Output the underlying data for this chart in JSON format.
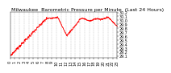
{
  "title": "Milwaukee  Barometric Pressure per Minute  (Last 24 Hours)",
  "line_color": "#ff0000",
  "bg_color": "#ffffff",
  "grid_color": "#b0b0b0",
  "ylim": [
    29.05,
    30.22
  ],
  "yticks": [
    29.1,
    29.2,
    29.3,
    29.4,
    29.5,
    29.6,
    29.7,
    29.8,
    29.9,
    30.0,
    30.1,
    30.2
  ],
  "ytick_labels": [
    "29.1",
    "29.2",
    "29.3",
    "29.4",
    "29.5",
    "29.6",
    "29.7",
    "29.8",
    "29.9",
    "30.0",
    "30.1",
    "30.2"
  ],
  "xtick_labels": [
    "0",
    "1",
    "2",
    "3",
    "4",
    "5",
    "6",
    "7",
    "8",
    "9",
    "10",
    "11",
    "12",
    "13",
    "14",
    "15",
    "16",
    "17",
    "18",
    "19",
    "20",
    "21",
    "22",
    "23"
  ],
  "title_fontsize": 4.5,
  "tick_fontsize": 3.5,
  "line_width": 0.6,
  "marker": ".",
  "marker_size": 0.7
}
